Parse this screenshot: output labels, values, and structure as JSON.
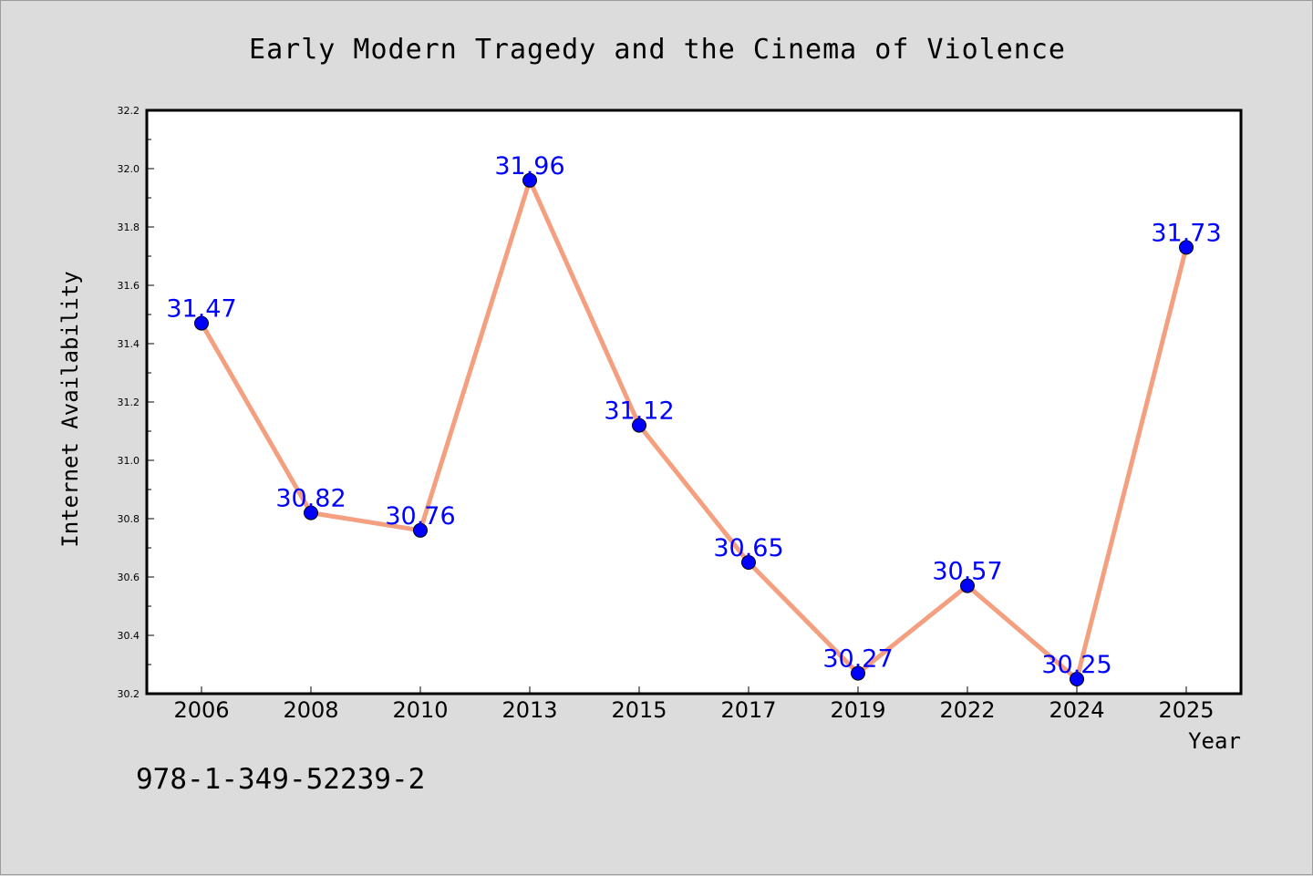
{
  "isbn": "978-1-349-52239-2",
  "colors": {
    "background": "#dcdcdc",
    "plot_background": "#ffffff",
    "line": "#f4a080",
    "marker": "#0000ff",
    "data_label": "#0000ff"
  },
  "chart_data": {
    "type": "line",
    "title": "Early Modern Tragedy and the Cinema of Violence",
    "xlabel": "Year",
    "ylabel": "Internet Availability",
    "categories": [
      "2006",
      "2008",
      "2010",
      "2013",
      "2015",
      "2017",
      "2019",
      "2022",
      "2024",
      "2025"
    ],
    "series": [
      {
        "values": [
          31.47,
          30.82,
          30.76,
          31.96,
          31.12,
          30.65,
          30.27,
          30.57,
          30.25,
          31.73
        ]
      }
    ],
    "data_labels": [
      "31.47",
      "30.82",
      "30.76",
      "31.96",
      "31.12",
      "30.65",
      "30.27",
      "30.57",
      "30.25",
      "31.73"
    ],
    "ylim": [
      30.2,
      32.2
    ],
    "yticks": [
      "30.2",
      "30.4",
      "30.6",
      "30.8",
      "31.0",
      "31.2",
      "31.4",
      "31.6",
      "31.8",
      "32.0",
      "32.2"
    ],
    "grid": false,
    "legend": "none",
    "marker": "circle"
  }
}
